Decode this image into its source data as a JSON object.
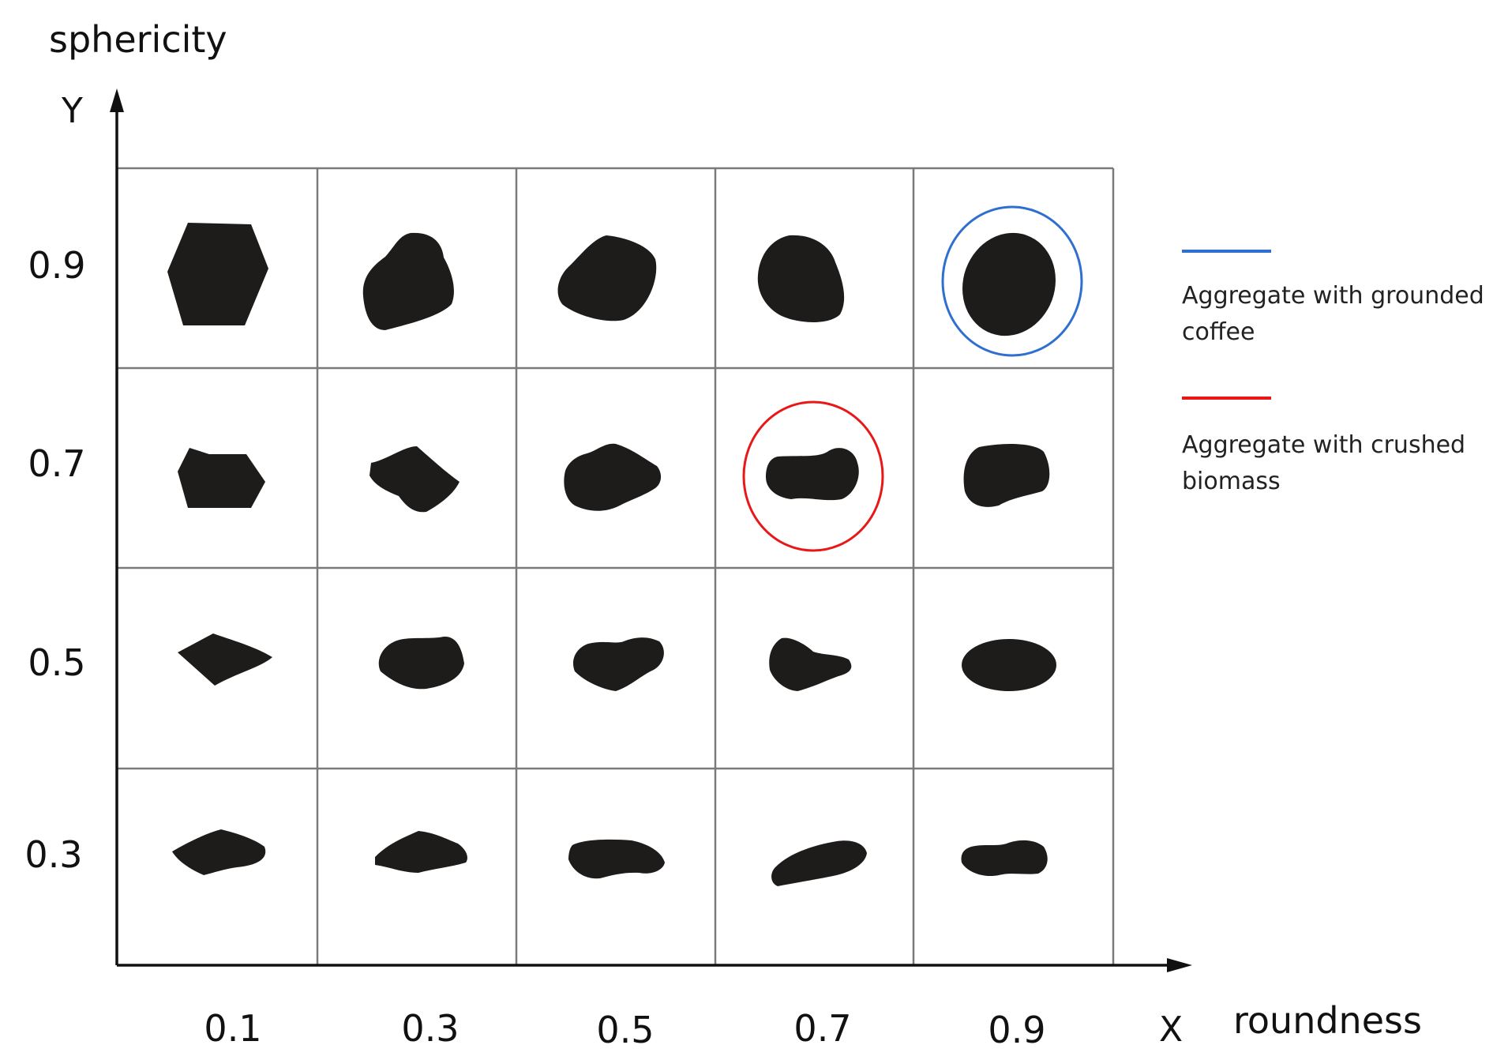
{
  "axes": {
    "y_title": "sphericity",
    "y_letter": "Y",
    "x_title": "roundness",
    "x_letter": "X"
  },
  "x_ticks": [
    "0.1",
    "0.3",
    "0.5",
    "0.7",
    "0.9"
  ],
  "y_ticks": [
    "0.9",
    "0.7",
    "0.5",
    "0.3"
  ],
  "legend": [
    {
      "line1": "Aggregate with grounded",
      "line2": "coffee",
      "color": "#2f6fd0"
    },
    {
      "line1": "Aggregate with crushed",
      "line2": "biomass",
      "color": "#e81818"
    }
  ],
  "highlights": [
    {
      "roundness": "0.9",
      "sphericity": "0.9",
      "color": "#2f6fd0"
    },
    {
      "roundness": "0.7",
      "sphericity": "0.7",
      "color": "#e81818"
    }
  ],
  "colors": {
    "grid": "#7a7a7a",
    "axis": "#111111",
    "particle": "#1e1b1b"
  }
}
